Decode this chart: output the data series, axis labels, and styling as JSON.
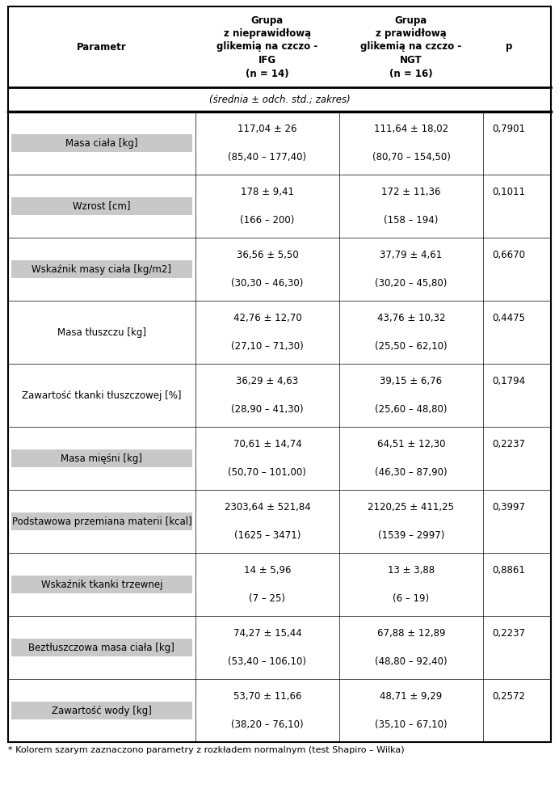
{
  "col_headers": [
    "Parametr",
    "Grupa\nz nieprawidłową\nglikemią na czczo -\nIFG\n(n = 14)",
    "Grupa\nz prawidłową\nglikemią na czczo -\nNGT\n(n = 16)",
    "p"
  ],
  "subheader": "(średnia ± odch. std.; zakres)",
  "rows": [
    {
      "param": "Masa ciała [kg]",
      "val1": "117,04 ± 26",
      "range1": "(85,40 – 177,40)",
      "val2": "111,64 ± 18,02",
      "range2": "(80,70 – 154,50)",
      "p": "0,7901",
      "highlight": true
    },
    {
      "param": "Wzrost [cm]",
      "val1": "178 ± 9,41",
      "range1": "(166 – 200)",
      "val2": "172 ± 11,36",
      "range2": "(158 – 194)",
      "p": "0,1011",
      "highlight": true
    },
    {
      "param": "Wskaźnik masy ciała [kg/m2]",
      "val1": "36,56 ± 5,50",
      "range1": "(30,30 – 46,30)",
      "val2": "37,79 ± 4,61",
      "range2": "(30,20 – 45,80)",
      "p": "0,6670",
      "highlight": true
    },
    {
      "param": "Masa tłuszczu [kg]",
      "val1": "42,76 ± 12,70",
      "range1": "(27,10 – 71,30)",
      "val2": "43,76 ± 10,32",
      "range2": "(25,50 – 62,10)",
      "p": "0,4475",
      "highlight": false
    },
    {
      "param": "Zawartość tkanki tłuszczowej [%]",
      "val1": "36,29 ± 4,63",
      "range1": "(28,90 – 41,30)",
      "val2": "39,15 ± 6,76",
      "range2": "(25,60 – 48,80)",
      "p": "0,1794",
      "highlight": false
    },
    {
      "param": "Masa mięśni [kg]",
      "val1": "70,61 ± 14,74",
      "range1": "(50,70 – 101,00)",
      "val2": "64,51 ± 12,30",
      "range2": "(46,30 – 87,90)",
      "p": "0,2237",
      "highlight": true
    },
    {
      "param": "Podstawowa przemiana materii [kcal]",
      "val1": "2303,64 ± 521,84",
      "range1": "(1625 – 3471)",
      "val2": "2120,25 ± 411,25",
      "range2": "(1539 – 2997)",
      "p": "0,3997",
      "highlight": true
    },
    {
      "param": "Wskaźnik tkanki trzewnej",
      "val1": "14 ± 5,96",
      "range1": "(7 – 25)",
      "val2": "13 ± 3,88",
      "range2": "(6 – 19)",
      "p": "0,8861",
      "highlight": true
    },
    {
      "param": "Beztłuszczowa masa ciała [kg]",
      "val1": "74,27 ± 15,44",
      "range1": "(53,40 – 106,10)",
      "val2": "67,88 ± 12,89",
      "range2": "(48,80 – 92,40)",
      "p": "0,2237",
      "highlight": true
    },
    {
      "param": "Zawartość wody [kg]",
      "val1": "53,70 ± 11,66",
      "range1": "(38,20 – 76,10)",
      "val2": "48,71 ± 9,29",
      "range2": "(35,10 – 67,10)",
      "p": "0,2572",
      "highlight": true
    }
  ],
  "footnote": "* Kolorem szarym zaznaczono parametry z rozkładem normalnym (test Shapiro – Wilka)",
  "highlight_color": "#c8c8c8",
  "border_color": "#000000",
  "bg_color": "#ffffff",
  "fig_width": 6.92,
  "fig_height": 9.81,
  "dpi": 100
}
